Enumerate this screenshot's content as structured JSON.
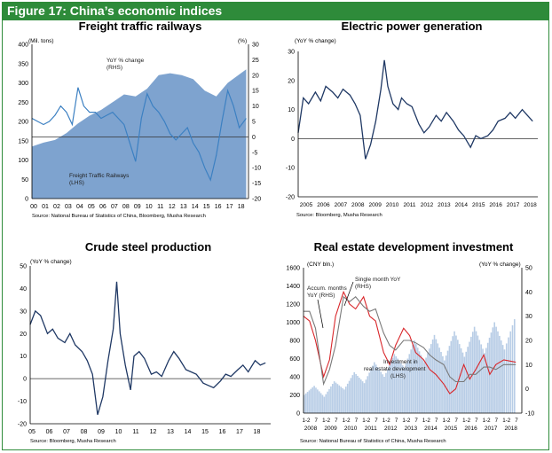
{
  "figure_title": "Figure 17: China’s economic indices",
  "chart_data": [
    {
      "type": "area",
      "title": "Freight  traffic railways",
      "left_unit": "(Mil. tons)",
      "right_unit": "(%)",
      "ylim_left": [
        0,
        400
      ],
      "ylim_right": [
        -20,
        30
      ],
      "left_ticks": [
        0,
        50,
        100,
        150,
        200,
        250,
        300,
        350,
        400
      ],
      "right_ticks": [
        -20,
        -15,
        -10,
        -5,
        0,
        5,
        10,
        15,
        20,
        25,
        30
      ],
      "x_ticks": [
        "00",
        "01",
        "02",
        "03",
        "04",
        "05",
        "06",
        "07",
        "08",
        "09",
        "10",
        "11",
        "12",
        "13",
        "14",
        "15",
        "16",
        "17",
        "18"
      ],
      "series": [
        {
          "name": "Freight Traffic Railways (LHS)",
          "axis": "left",
          "x": [
            2000,
            2001,
            2002,
            2003,
            2004,
            2005,
            2006,
            2007,
            2008,
            2009,
            2010,
            2011,
            2012,
            2013,
            2014,
            2015,
            2016,
            2017,
            2018.6
          ],
          "values": [
            135,
            145,
            152,
            170,
            195,
            215,
            230,
            250,
            270,
            265,
            285,
            320,
            325,
            320,
            310,
            280,
            265,
            300,
            335
          ]
        },
        {
          "name": "YoY % change (RHS)",
          "axis": "right",
          "x": [
            2000,
            2000.5,
            2001,
            2001.5,
            2002,
            2002.5,
            2003,
            2003.5,
            2004,
            2004.5,
            2005,
            2005.5,
            2006,
            2006.5,
            2007,
            2007.5,
            2008,
            2008.5,
            2009,
            2009.5,
            2010,
            2010.5,
            2011,
            2011.5,
            2012,
            2012.5,
            2013,
            2013.5,
            2014,
            2014.5,
            2015,
            2015.5,
            2016,
            2016.5,
            2017,
            2017.5,
            2018,
            2018.6
          ],
          "values": [
            6,
            5,
            4,
            5,
            7,
            10,
            8,
            4,
            16,
            10,
            8,
            8,
            6,
            7,
            8,
            6,
            4,
            -2,
            -8,
            6,
            14,
            10,
            8,
            5,
            1,
            -1,
            1,
            3,
            -2,
            -5,
            -10,
            -14,
            -6,
            5,
            15,
            10,
            3,
            6
          ]
        }
      ],
      "annotations": [
        "YoY % change (RHS)",
        "Freight Traffic Railways (LHS)"
      ],
      "source": "Source: National Bureau of Statistics of China, Bloomberg, Musha Research"
    },
    {
      "type": "line",
      "title": "Electric power generation",
      "ylabel": "(YoY % change)",
      "ylim": [
        -20,
        30
      ],
      "y_ticks": [
        -20,
        -10,
        0,
        10,
        20,
        30
      ],
      "x_ticks": [
        "2005",
        "2006",
        "2007",
        "2008",
        "2009",
        "2010",
        "2011",
        "2012",
        "2013",
        "2014",
        "2015",
        "2016",
        "2017",
        "2018"
      ],
      "x": [
        2005,
        2005.3,
        2005.6,
        2006,
        2006.3,
        2006.6,
        2007,
        2007.3,
        2007.6,
        2008,
        2008.3,
        2008.6,
        2008.9,
        2009.2,
        2009.5,
        2009.8,
        2010,
        2010.2,
        2010.5,
        2010.8,
        2011,
        2011.3,
        2011.6,
        2012,
        2012.3,
        2012.6,
        2013,
        2013.3,
        2013.6,
        2014,
        2014.3,
        2014.6,
        2015,
        2015.3,
        2015.6,
        2016,
        2016.3,
        2016.6,
        2017,
        2017.3,
        2017.6,
        2018,
        2018.3,
        2018.6
      ],
      "values": [
        2,
        14,
        12,
        16,
        13,
        18,
        16,
        14,
        17,
        15,
        12,
        8,
        -7,
        -2,
        6,
        17,
        27,
        18,
        12,
        10,
        14,
        12,
        11,
        5,
        2,
        4,
        8,
        6,
        9,
        6,
        3,
        1,
        -3,
        1,
        0,
        1,
        3,
        6,
        7,
        9,
        7,
        10,
        8,
        6
      ],
      "source": "Source: Bloomberg, Musha Research"
    },
    {
      "type": "line",
      "title": "Crude steel production",
      "ylabel": "(YoY % change)",
      "ylim": [
        -20,
        50
      ],
      "y_ticks": [
        -20,
        -10,
        0,
        10,
        20,
        30,
        40,
        50
      ],
      "x_ticks": [
        "05",
        "06",
        "07",
        "08",
        "09",
        "10",
        "11",
        "12",
        "13",
        "14",
        "15",
        "16",
        "17",
        "18"
      ],
      "x": [
        2005,
        2005.3,
        2005.6,
        2006,
        2006.3,
        2006.6,
        2007,
        2007.3,
        2007.6,
        2008,
        2008.3,
        2008.6,
        2008.9,
        2009.2,
        2009.5,
        2009.8,
        2010,
        2010.2,
        2010.5,
        2010.8,
        2011,
        2011.3,
        2011.6,
        2012,
        2012.3,
        2012.6,
        2013,
        2013.3,
        2013.6,
        2014,
        2014.3,
        2014.6,
        2015,
        2015.3,
        2015.6,
        2016,
        2016.3,
        2016.6,
        2017,
        2017.3,
        2017.6,
        2018,
        2018.3,
        2018.6
      ],
      "values": [
        24,
        30,
        28,
        20,
        22,
        18,
        16,
        20,
        15,
        12,
        8,
        2,
        -16,
        -8,
        8,
        22,
        43,
        20,
        6,
        -5,
        10,
        12,
        9,
        2,
        3,
        1,
        8,
        12,
        9,
        4,
        3,
        2,
        -2,
        -3,
        -4,
        -1,
        2,
        1,
        4,
        6,
        3,
        8,
        6,
        7
      ],
      "source": "Source: Bloomberg, Musha Research"
    },
    {
      "type": "bar",
      "title": "Real estate development investment",
      "left_unit": "(CNY bln.)",
      "right_unit": "(YoY % change)",
      "ylim_left": [
        0,
        1600
      ],
      "ylim_right": [
        -10,
        50
      ],
      "left_ticks": [
        0,
        200,
        400,
        600,
        800,
        1000,
        1200,
        1400,
        1600
      ],
      "right_ticks": [
        -10,
        0,
        10,
        20,
        30,
        40,
        50
      ],
      "x_tick_months": [
        "1-2",
        "7",
        "1-2",
        "7",
        "1-2",
        "7",
        "1-2",
        "7",
        "1-2",
        "7",
        "1-2",
        "7",
        "1-2",
        "7",
        "1-2",
        "7",
        "1-2",
        "7",
        "1-2",
        "7",
        "1-2",
        "7"
      ],
      "x_years": [
        "2008",
        "2009",
        "2010",
        "2011",
        "2012",
        "2013",
        "2014",
        "2015",
        "2016",
        "2017",
        "2018"
      ],
      "series": [
        {
          "name": "Investment in real estate development (LHS)",
          "axis": "left",
          "x": [
            2008,
            2008.5,
            2009,
            2009.5,
            2010,
            2010.5,
            2011,
            2011.5,
            2012,
            2012.5,
            2013,
            2013.5,
            2014,
            2014.5,
            2015,
            2015.5,
            2016,
            2016.5,
            2017,
            2017.5,
            2018,
            2018.6
          ],
          "values": [
            200,
            300,
            180,
            350,
            260,
            450,
            330,
            560,
            400,
            650,
            500,
            800,
            560,
            860,
            580,
            900,
            620,
            950,
            660,
            1000,
            700,
            1100
          ]
        },
        {
          "name": "Accum. months YoY (RHS)",
          "axis": "right",
          "x": [
            2008,
            2008.3,
            2008.6,
            2009,
            2009.3,
            2009.6,
            2010,
            2010.3,
            2010.6,
            2011,
            2011.3,
            2011.6,
            2012,
            2012.3,
            2012.6,
            2013,
            2013.3,
            2013.6,
            2014,
            2014.3,
            2014.6,
            2015,
            2015.3,
            2015.6,
            2016,
            2016.3,
            2016.6,
            2017,
            2017.3,
            2017.6,
            2018,
            2018.6
          ],
          "values": [
            32,
            32,
            25,
            2,
            8,
            18,
            38,
            36,
            38,
            34,
            32,
            33,
            23,
            18,
            16,
            20,
            20,
            19,
            17,
            14,
            12,
            10,
            5,
            3,
            3,
            6,
            6,
            9,
            9,
            8,
            10,
            10
          ]
        },
        {
          "name": "Single month YoY (RHS)",
          "axis": "right",
          "x": [
            2008,
            2008.3,
            2008.6,
            2009,
            2009.3,
            2009.6,
            2010,
            2010.3,
            2010.6,
            2011,
            2011.3,
            2011.6,
            2012,
            2012.3,
            2012.6,
            2013,
            2013.3,
            2013.6,
            2014,
            2014.3,
            2014.6,
            2015,
            2015.3,
            2015.6,
            2016,
            2016.3,
            2016.6,
            2017,
            2017.3,
            2017.6,
            2018,
            2018.6
          ],
          "values": [
            30,
            28,
            20,
            5,
            12,
            30,
            40,
            35,
            33,
            38,
            30,
            28,
            15,
            10,
            18,
            25,
            22,
            15,
            12,
            8,
            6,
            2,
            -2,
            0,
            10,
            4,
            8,
            14,
            6,
            10,
            12,
            11
          ]
        }
      ],
      "annotations": [
        "Single month YoY (RHS)",
        "Accum. months YoY (RHS)",
        "Investment in real estate development (LHS)"
      ],
      "source": "Source: National Bureau of Statistics of China, Musha Research"
    }
  ],
  "colors": {
    "frame": "#2e8b3a",
    "area": "#7ea3cf",
    "line_dark": "#1f3864",
    "line_light": "#3c80c2",
    "bar": "#b8cde6",
    "red": "#d9262a",
    "gray": "#7a7a7a"
  }
}
